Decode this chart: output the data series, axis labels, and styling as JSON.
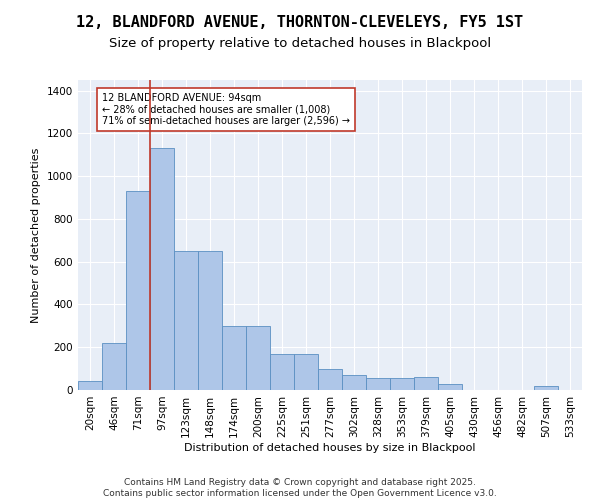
{
  "title": "12, BLANDFORD AVENUE, THORNTON-CLEVELEYS, FY5 1ST",
  "subtitle": "Size of property relative to detached houses in Blackpool",
  "xlabel": "Distribution of detached houses by size in Blackpool",
  "ylabel": "Number of detached properties",
  "categories": [
    "20sqm",
    "46sqm",
    "71sqm",
    "97sqm",
    "123sqm",
    "148sqm",
    "174sqm",
    "200sqm",
    "225sqm",
    "251sqm",
    "277sqm",
    "302sqm",
    "328sqm",
    "353sqm",
    "379sqm",
    "405sqm",
    "430sqm",
    "456sqm",
    "482sqm",
    "507sqm",
    "533sqm"
  ],
  "values": [
    40,
    220,
    930,
    1130,
    650,
    650,
    300,
    300,
    170,
    170,
    100,
    70,
    55,
    55,
    60,
    30,
    0,
    0,
    0,
    20,
    0
  ],
  "bar_color": "#aec6e8",
  "bar_edge_color": "#5a8fc2",
  "vline_x": 2.5,
  "vline_color": "#c0392b",
  "annotation_text": "12 BLANDFORD AVENUE: 94sqm\n← 28% of detached houses are smaller (1,008)\n71% of semi-detached houses are larger (2,596) →",
  "annotation_box_color": "#ffffff",
  "annotation_box_edge": "#c0392b",
  "ylim": [
    0,
    1450
  ],
  "background_color": "#e8eef7",
  "footer_text": "Contains HM Land Registry data © Crown copyright and database right 2025.\nContains public sector information licensed under the Open Government Licence v3.0.",
  "title_fontsize": 11,
  "subtitle_fontsize": 9.5,
  "axis_label_fontsize": 8,
  "tick_fontsize": 7.5,
  "footer_fontsize": 6.5
}
